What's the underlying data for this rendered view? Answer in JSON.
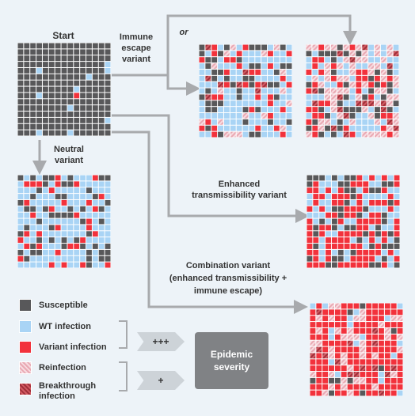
{
  "labels": {
    "start": "Start",
    "immune_escape": "Immune escape variant",
    "or": "or",
    "neutral": "Neutral variant",
    "enhanced": "Enhanced transmissibility variant",
    "combination_line1": "Combination variant",
    "combination_line2": "(enhanced transmissibility +",
    "combination_line3": "immune escape)"
  },
  "legend": [
    {
      "label": "Susceptible",
      "color": "#58585a"
    },
    {
      "label": "WT infection",
      "color": "#a9d4f5"
    },
    {
      "label": "Variant infection",
      "color": "#f2323c"
    },
    {
      "label": "Reinfection",
      "color": "#e9a9b3",
      "pattern": "hatch"
    },
    {
      "label": "Breakthrough infection",
      "color": "#a0303a",
      "pattern": "hatch"
    }
  ],
  "arrows": {
    "wt_variant": "+++",
    "reinf_break": "+"
  },
  "severity": {
    "line1": "Epidemic",
    "line2": "severity"
  },
  "colors": {
    "background": "#edf3f8",
    "susceptible": "#58585a",
    "wt": "#a9d4f5",
    "variant": "#f2323c",
    "reinfection": "#e9a9b3",
    "breakthrough": "#a0303a",
    "arrow": "#a8aaad",
    "severity_box": "#808285"
  },
  "icons": [
    "arrow-icon",
    "chevron-arrow-icon",
    "bracket-icon"
  ]
}
